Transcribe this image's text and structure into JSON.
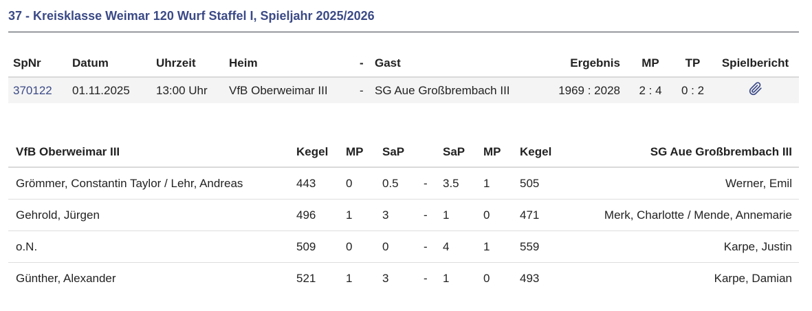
{
  "title": "37 - Kreisklasse Weimar 120 Wurf Staffel I, Spieljahr 2025/2026",
  "match_table": {
    "headers": {
      "spnr": "SpNr",
      "datum": "Datum",
      "uhrzeit": "Uhrzeit",
      "heim": "Heim",
      "dash": "-",
      "gast": "Gast",
      "ergebnis": "Ergebnis",
      "mp": "MP",
      "tp": "TP",
      "spielbericht": "Spielbericht"
    },
    "row": {
      "spnr": "370122",
      "datum": "01.11.2025",
      "uhrzeit": "13:00 Uhr",
      "heim": "VfB Oberweimar III",
      "dash": "-",
      "gast": "SG Aue Großbrembach III",
      "ergebnis": "1969 : 2028",
      "mp": "2 : 4",
      "tp": "0 : 2",
      "spielbericht_icon": "paperclip-icon"
    }
  },
  "player_table": {
    "headers": {
      "home_team": "VfB Oberweimar III",
      "kegel_home": "Kegel",
      "mp_home": "MP",
      "sap_home": "SaP",
      "sap_away": "SaP",
      "mp_away": "MP",
      "kegel_away": "Kegel",
      "away_team": "SG Aue Großbrembach III"
    },
    "rows": [
      {
        "home": "Grömmer, Constantin Taylor / Lehr, Andreas",
        "kegel_home": "443",
        "mp_home": "0",
        "sap_home": "0.5",
        "dash": "-",
        "sap_away": "3.5",
        "mp_away": "1",
        "kegel_away": "505",
        "away": "Werner, Emil"
      },
      {
        "home": "Gehrold, Jürgen",
        "kegel_home": "496",
        "mp_home": "1",
        "sap_home": "3",
        "dash": "-",
        "sap_away": "1",
        "mp_away": "0",
        "kegel_away": "471",
        "away": "Merk, Charlotte / Mende, Annemarie"
      },
      {
        "home": "o.N.",
        "kegel_home": "509",
        "mp_home": "0",
        "sap_home": "0",
        "dash": "-",
        "sap_away": "4",
        "mp_away": "1",
        "kegel_away": "559",
        "away": "Karpe, Justin"
      },
      {
        "home": "Günther, Alexander",
        "kegel_home": "521",
        "mp_home": "1",
        "sap_home": "3",
        "dash": "-",
        "sap_away": "1",
        "mp_away": "0",
        "kegel_away": "493",
        "away": "Karpe, Damian"
      }
    ]
  },
  "colors": {
    "accent": "#3b4a86",
    "row_bg": "#f4f4f4"
  }
}
